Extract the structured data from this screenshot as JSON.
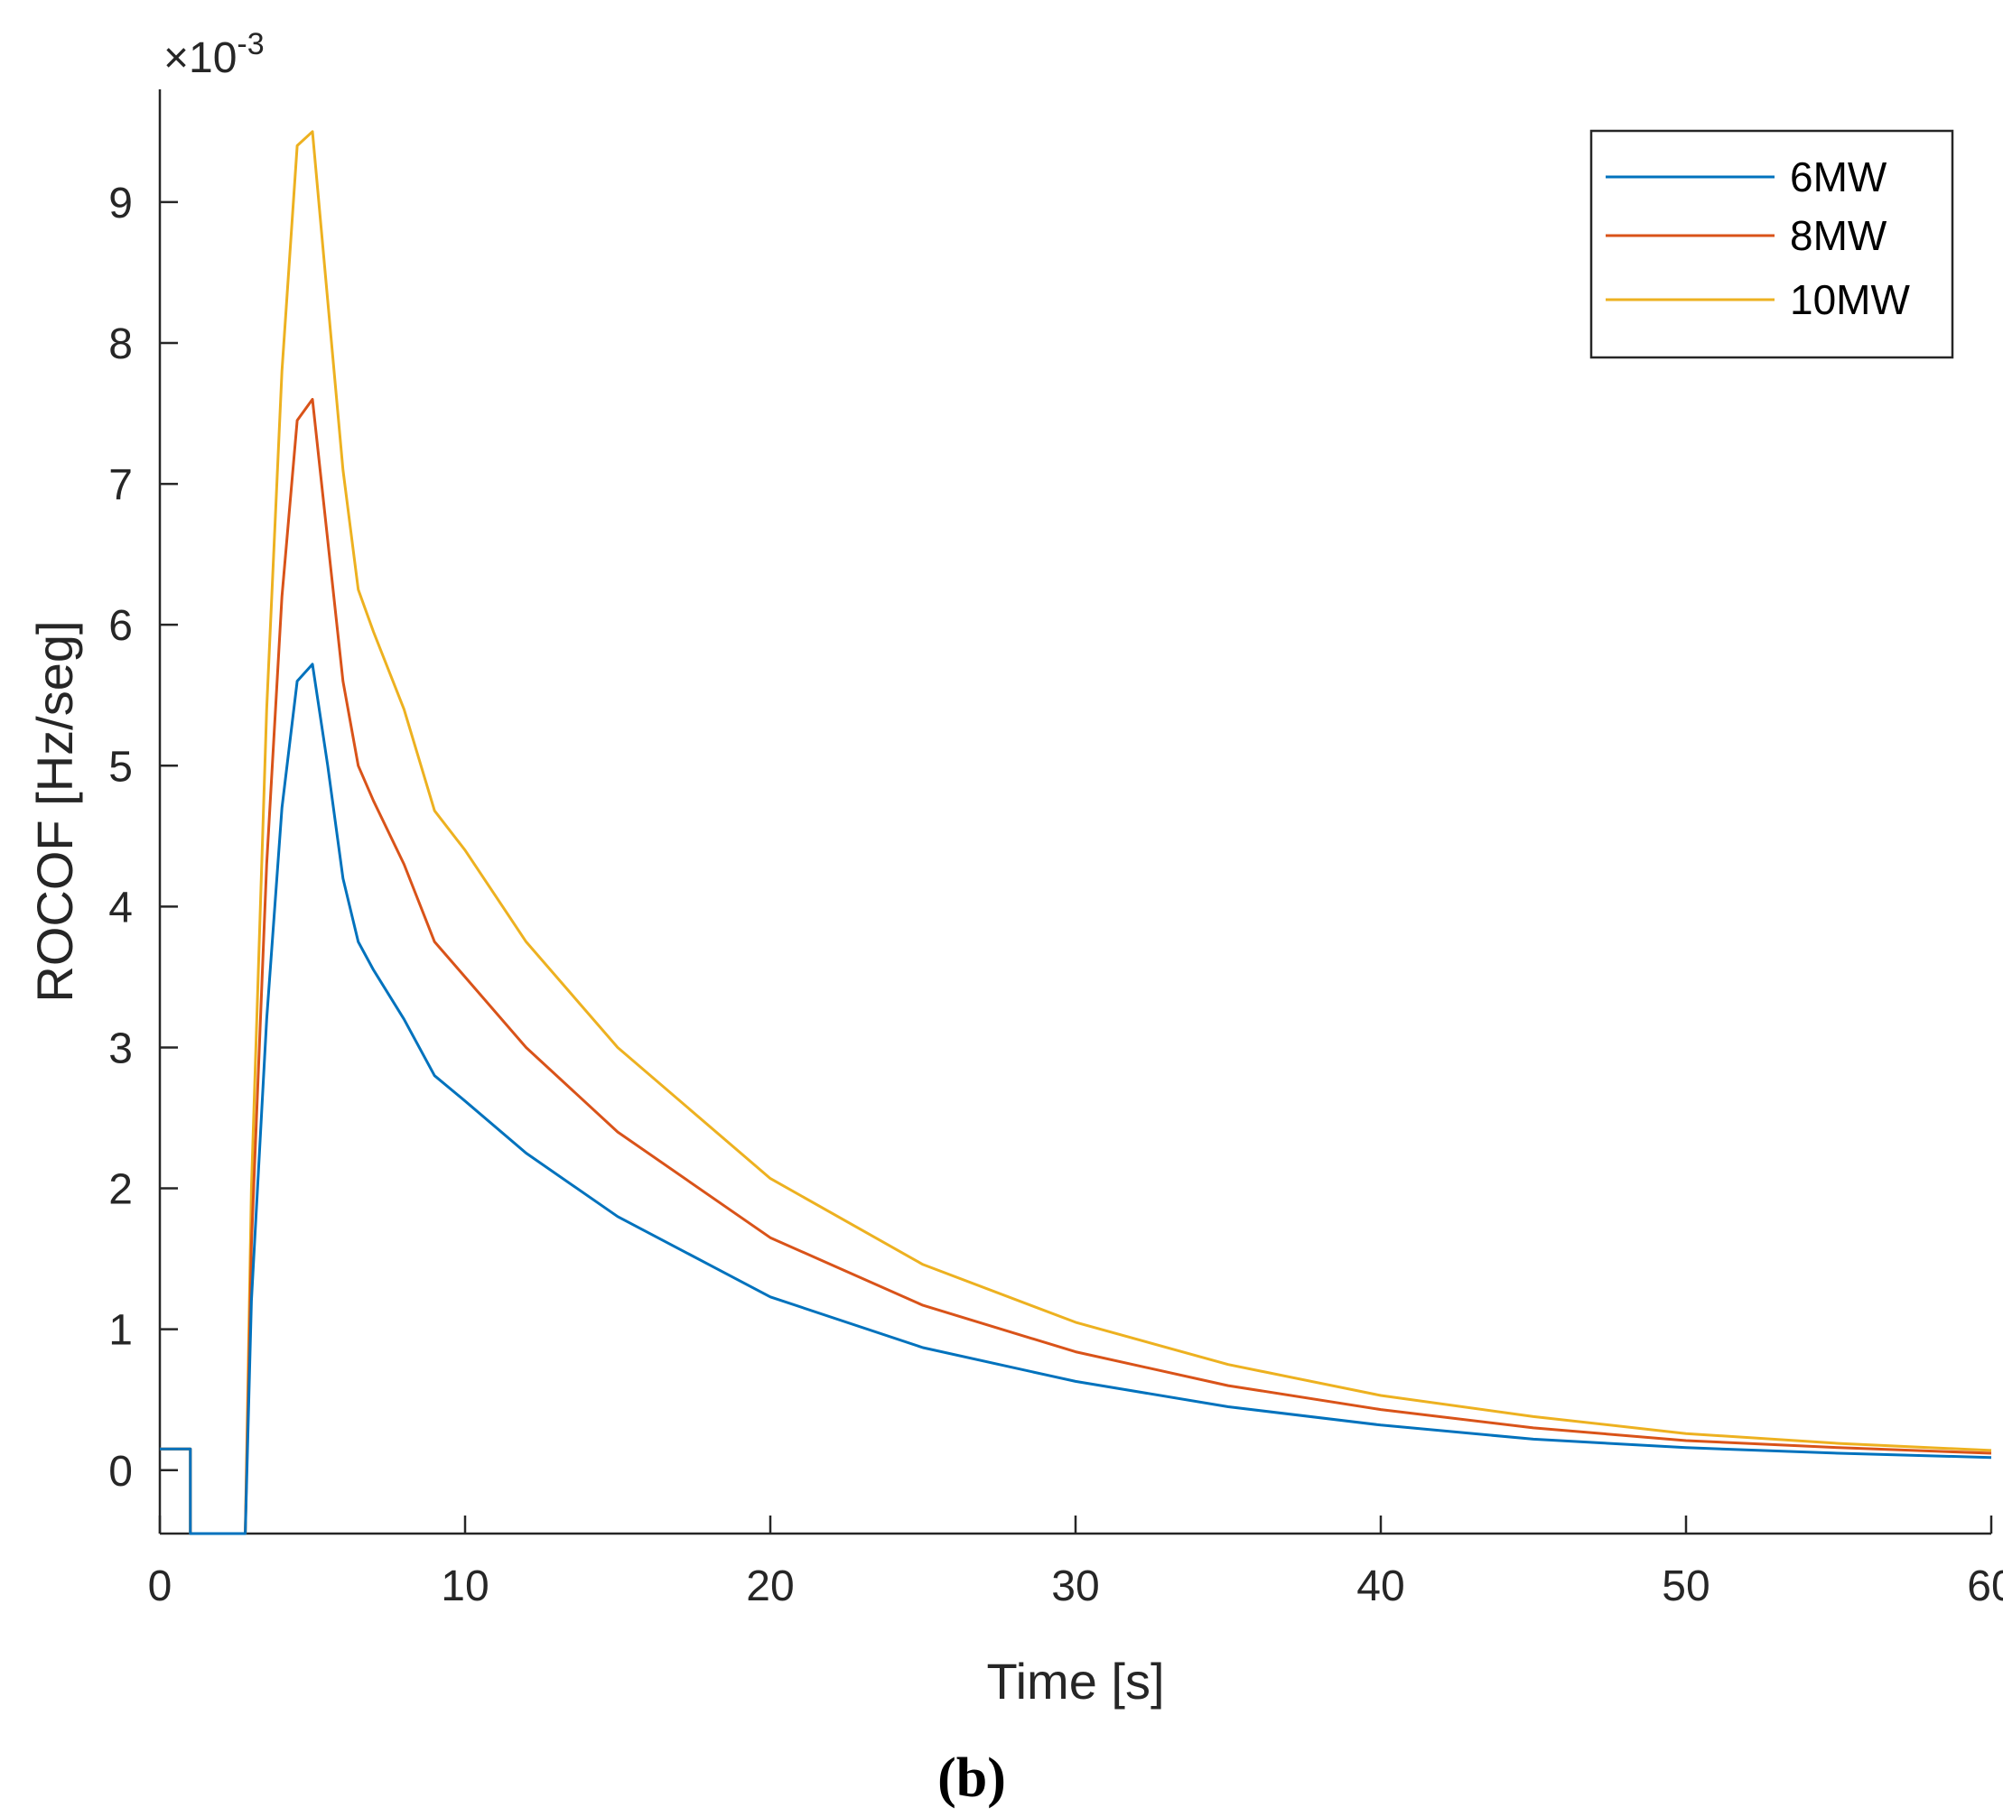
{
  "chart_data": {
    "type": "line",
    "xlabel": "Time [s]",
    "ylabel": "ROCOF [Hz/seg]",
    "exponent_label": "×10",
    "exponent_power": "-3",
    "xlim": [
      0,
      60
    ],
    "ylim": [
      -0.45,
      9.8
    ],
    "xticks": [
      0,
      10,
      20,
      30,
      40,
      50,
      60
    ],
    "yticks": [
      0,
      1,
      2,
      3,
      4,
      5,
      6,
      7,
      8,
      9
    ],
    "legend_position": "top-right",
    "caption": "(b)",
    "series": [
      {
        "name": "6MW",
        "color": "#0072BD",
        "points": [
          [
            0,
            0.15
          ],
          [
            1,
            0.15
          ],
          [
            1,
            -0.45
          ],
          [
            2.8,
            -0.45
          ],
          [
            3.0,
            1.2
          ],
          [
            3.5,
            3.2
          ],
          [
            4,
            4.7
          ],
          [
            4.5,
            5.6
          ],
          [
            5,
            5.72
          ],
          [
            5.5,
            5.0
          ],
          [
            6,
            4.2
          ],
          [
            6.5,
            3.75
          ],
          [
            7,
            3.55
          ],
          [
            8,
            3.2
          ],
          [
            9,
            2.8
          ],
          [
            10,
            2.62
          ],
          [
            12,
            2.25
          ],
          [
            15,
            1.8
          ],
          [
            20,
            1.23
          ],
          [
            25,
            0.87
          ],
          [
            30,
            0.63
          ],
          [
            35,
            0.45
          ],
          [
            40,
            0.32
          ],
          [
            45,
            0.22
          ],
          [
            50,
            0.16
          ],
          [
            55,
            0.12
          ],
          [
            60,
            0.09
          ]
        ]
      },
      {
        "name": "8MW",
        "color": "#D95319",
        "points": [
          [
            0,
            0.15
          ],
          [
            1,
            0.15
          ],
          [
            1,
            -0.45
          ],
          [
            2.8,
            -0.45
          ],
          [
            3.0,
            1.6
          ],
          [
            3.5,
            4.3
          ],
          [
            4,
            6.2
          ],
          [
            4.5,
            7.45
          ],
          [
            5,
            7.6
          ],
          [
            5.5,
            6.6
          ],
          [
            6,
            5.6
          ],
          [
            6.5,
            5.0
          ],
          [
            7,
            4.75
          ],
          [
            8,
            4.3
          ],
          [
            9,
            3.75
          ],
          [
            10,
            3.5
          ],
          [
            12,
            3.0
          ],
          [
            15,
            2.4
          ],
          [
            20,
            1.65
          ],
          [
            25,
            1.17
          ],
          [
            30,
            0.84
          ],
          [
            35,
            0.6
          ],
          [
            40,
            0.43
          ],
          [
            45,
            0.3
          ],
          [
            50,
            0.21
          ],
          [
            55,
            0.16
          ],
          [
            60,
            0.12
          ]
        ]
      },
      {
        "name": "10MW",
        "color": "#EDB120",
        "points": [
          [
            0,
            0.15
          ],
          [
            1,
            0.15
          ],
          [
            1,
            -0.45
          ],
          [
            2.8,
            -0.45
          ],
          [
            3.0,
            2.0
          ],
          [
            3.5,
            5.4
          ],
          [
            4,
            7.8
          ],
          [
            4.5,
            9.4
          ],
          [
            5,
            9.5
          ],
          [
            5.5,
            8.3
          ],
          [
            6,
            7.1
          ],
          [
            6.5,
            6.25
          ],
          [
            7,
            5.95
          ],
          [
            8,
            5.4
          ],
          [
            9,
            4.68
          ],
          [
            10,
            4.4
          ],
          [
            12,
            3.75
          ],
          [
            15,
            3.0
          ],
          [
            20,
            2.07
          ],
          [
            25,
            1.46
          ],
          [
            30,
            1.05
          ],
          [
            35,
            0.75
          ],
          [
            40,
            0.53
          ],
          [
            45,
            0.38
          ],
          [
            50,
            0.26
          ],
          [
            55,
            0.19
          ],
          [
            60,
            0.14
          ]
        ]
      }
    ]
  }
}
